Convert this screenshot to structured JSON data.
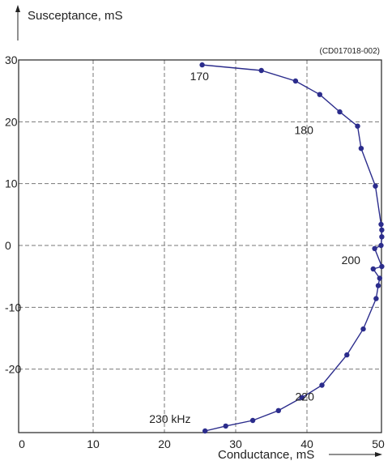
{
  "chart_data": {
    "type": "line",
    "title": "",
    "figure_code": "(CD017018-002)",
    "xlabel": "Conductance, mS",
    "ylabel": "Susceptance, mS",
    "xlim": [
      0,
      51
    ],
    "ylim": [
      -29.5,
      30
    ],
    "x_ticks": [
      "0",
      "10",
      "20",
      "30",
      "40",
      "50"
    ],
    "y_ticks": [
      "30",
      "20",
      "10",
      "0",
      "-10",
      "-20"
    ],
    "grid": true,
    "series": [
      {
        "x": [
          25.3,
          33.6,
          38.4,
          41.8,
          44.6,
          47.1,
          47.6,
          49.6,
          50.4,
          50.5,
          50.5,
          50.4,
          49.5,
          50.5,
          49.3,
          50.2,
          50.0,
          49.7,
          47.9,
          45.6,
          42.1,
          39.3,
          36.0,
          32.4,
          28.6,
          25.7
        ],
        "y": [
          29.2,
          28.3,
          26.6,
          24.4,
          21.6,
          19.3,
          15.7,
          9.6,
          3.4,
          2.5,
          1.4,
          0.0,
          -0.5,
          -3.4,
          -3.8,
          -5.3,
          -6.5,
          -8.6,
          -13.5,
          -17.7,
          -22.6,
          -24.6,
          -26.7,
          -28.3,
          -29.2,
          -30.0
        ]
      }
    ],
    "annotations": [
      {
        "text": "170",
        "x": 25.3,
        "y": 29.2
      },
      {
        "text": "180",
        "x": 47.1,
        "y": 19.3
      },
      {
        "text": "200",
        "x": 49.5,
        "y": -0.5
      },
      {
        "text": "220",
        "x": 42.1,
        "y": -22.6
      },
      {
        "text": "230 kHz",
        "x": 25.7,
        "y": -30.0
      }
    ]
  }
}
